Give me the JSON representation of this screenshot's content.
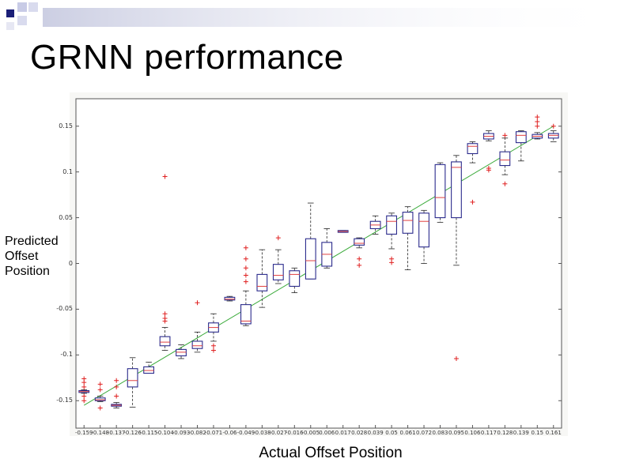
{
  "slide": {
    "title": "GRNN performance"
  },
  "colors": {
    "box": "#2b2b8c",
    "median": "#e04040",
    "outlier": "#e02020",
    "fit_line": "#3aaa3a",
    "whisker": "#222222"
  },
  "chart_data": {
    "type": "boxplot",
    "xlabel": "Actual Offset Position",
    "ylabel_lines": [
      "Predicted",
      "Offset",
      "Position"
    ],
    "ylim": [
      -0.18,
      0.18
    ],
    "yticks": [
      -0.15,
      -0.1,
      -0.05,
      0,
      0.05,
      0.1,
      0.15
    ],
    "ytick_labels": [
      "-0.15",
      "-0.1",
      "-0.05",
      "0",
      "0.05",
      "0.1",
      "0.15"
    ],
    "grid": false,
    "x_tick_labels": [
      "-0.159",
      "-0.148",
      "-0.137",
      "-0.126",
      "-0.115",
      "-0.104",
      "-0.093",
      "-0.082",
      "-0.071",
      "-0.06",
      "-0.049",
      "-0.038",
      "-0.027",
      "-0.016",
      "-0.005",
      "0.006",
      "0.017",
      "0.028",
      "0.039",
      "0.05",
      "0.061",
      "0.072",
      "0.083",
      "0.095",
      "0.106",
      "0.117",
      "0.128",
      "0.139",
      "0.15",
      "0.161"
    ],
    "fit_line": {
      "x": [
        -0.159,
        0.161
      ],
      "y": [
        -0.155,
        0.15
      ]
    },
    "boxes": [
      {
        "x": -0.159,
        "whisker_low": -0.142,
        "q1": -0.141,
        "median": -0.14,
        "q3": -0.139,
        "whisker_high": -0.138,
        "outliers": [
          -0.126,
          -0.13,
          -0.135,
          -0.145,
          -0.15
        ]
      },
      {
        "x": -0.148,
        "whisker_low": -0.151,
        "q1": -0.15,
        "median": -0.149,
        "q3": -0.147,
        "whisker_high": -0.145,
        "outliers": [
          -0.132,
          -0.138,
          -0.158
        ]
      },
      {
        "x": -0.137,
        "whisker_low": -0.158,
        "q1": -0.156,
        "median": -0.155,
        "q3": -0.154,
        "whisker_high": -0.152,
        "outliers": [
          -0.128,
          -0.135,
          -0.145
        ]
      },
      {
        "x": -0.126,
        "whisker_low": -0.157,
        "q1": -0.135,
        "median": -0.128,
        "q3": -0.115,
        "whisker_high": -0.103,
        "outliers": []
      },
      {
        "x": -0.115,
        "whisker_low": -0.12,
        "q1": -0.12,
        "median": -0.117,
        "q3": -0.113,
        "whisker_high": -0.108,
        "outliers": []
      },
      {
        "x": -0.104,
        "whisker_low": -0.095,
        "q1": -0.09,
        "median": -0.086,
        "q3": -0.08,
        "whisker_high": -0.07,
        "outliers": [
          0.095,
          -0.055,
          -0.06,
          -0.063
        ]
      },
      {
        "x": -0.093,
        "whisker_low": -0.104,
        "q1": -0.101,
        "median": -0.097,
        "q3": -0.094,
        "whisker_high": -0.089,
        "outliers": []
      },
      {
        "x": -0.082,
        "whisker_low": -0.097,
        "q1": -0.093,
        "median": -0.09,
        "q3": -0.085,
        "whisker_high": -0.075,
        "outliers": [
          -0.043
        ]
      },
      {
        "x": -0.071,
        "whisker_low": -0.085,
        "q1": -0.075,
        "median": -0.07,
        "q3": -0.065,
        "whisker_high": -0.055,
        "outliers": [
          -0.095,
          -0.09
        ]
      },
      {
        "x": -0.06,
        "whisker_low": -0.041,
        "q1": -0.04,
        "median": -0.039,
        "q3": -0.037,
        "whisker_high": -0.036,
        "outliers": []
      },
      {
        "x": -0.049,
        "whisker_low": -0.068,
        "q1": -0.066,
        "median": -0.063,
        "q3": -0.045,
        "whisker_high": -0.03,
        "outliers": [
          0.017,
          0.005,
          -0.005,
          -0.013,
          -0.02
        ]
      },
      {
        "x": -0.038,
        "whisker_low": -0.048,
        "q1": -0.03,
        "median": -0.025,
        "q3": -0.012,
        "whisker_high": 0.015,
        "outliers": []
      },
      {
        "x": -0.027,
        "whisker_low": -0.022,
        "q1": -0.018,
        "median": -0.013,
        "q3": -0.001,
        "whisker_high": 0.015,
        "outliers": [
          0.028
        ]
      },
      {
        "x": -0.016,
        "whisker_low": -0.032,
        "q1": -0.025,
        "median": -0.012,
        "q3": -0.008,
        "whisker_high": -0.005,
        "outliers": []
      },
      {
        "x": -0.005,
        "whisker_low": -0.017,
        "q1": -0.017,
        "median": 0.003,
        "q3": 0.027,
        "whisker_high": 0.066,
        "outliers": []
      },
      {
        "x": 0.006,
        "whisker_low": -0.005,
        "q1": -0.003,
        "median": 0.01,
        "q3": 0.023,
        "whisker_high": 0.038,
        "outliers": []
      },
      {
        "x": 0.017,
        "whisker_low": 0.034,
        "q1": 0.034,
        "median": 0.035,
        "q3": 0.036,
        "whisker_high": 0.036,
        "outliers": []
      },
      {
        "x": 0.028,
        "whisker_low": 0.017,
        "q1": 0.02,
        "median": 0.022,
        "q3": 0.027,
        "whisker_high": 0.028,
        "outliers": [
          0.005,
          -0.002
        ]
      },
      {
        "x": 0.039,
        "whisker_low": 0.032,
        "q1": 0.038,
        "median": 0.042,
        "q3": 0.046,
        "whisker_high": 0.052,
        "outliers": []
      },
      {
        "x": 0.05,
        "whisker_low": 0.016,
        "q1": 0.032,
        "median": 0.046,
        "q3": 0.052,
        "whisker_high": 0.055,
        "outliers": [
          0.005,
          0.001
        ]
      },
      {
        "x": 0.061,
        "whisker_low": -0.007,
        "q1": 0.033,
        "median": 0.047,
        "q3": 0.056,
        "whisker_high": 0.062,
        "outliers": []
      },
      {
        "x": 0.072,
        "whisker_low": 0.0,
        "q1": 0.018,
        "median": 0.046,
        "q3": 0.055,
        "whisker_high": 0.058,
        "outliers": []
      },
      {
        "x": 0.083,
        "whisker_low": 0.045,
        "q1": 0.05,
        "median": 0.072,
        "q3": 0.108,
        "whisker_high": 0.11,
        "outliers": []
      },
      {
        "x": 0.095,
        "whisker_low": -0.002,
        "q1": 0.05,
        "median": 0.105,
        "q3": 0.111,
        "whisker_high": 0.118,
        "outliers": [
          -0.104
        ]
      },
      {
        "x": 0.106,
        "whisker_low": 0.11,
        "q1": 0.12,
        "median": 0.128,
        "q3": 0.131,
        "whisker_high": 0.133,
        "outliers": [
          0.067
        ]
      },
      {
        "x": 0.117,
        "whisker_low": 0.134,
        "q1": 0.136,
        "median": 0.139,
        "q3": 0.142,
        "whisker_high": 0.145,
        "outliers": [
          0.104,
          0.102
        ]
      },
      {
        "x": 0.128,
        "whisker_low": 0.097,
        "q1": 0.107,
        "median": 0.113,
        "q3": 0.122,
        "whisker_high": 0.137,
        "outliers": [
          0.14,
          0.087
        ]
      },
      {
        "x": 0.139,
        "whisker_low": 0.112,
        "q1": 0.132,
        "median": 0.14,
        "q3": 0.144,
        "whisker_high": 0.145,
        "outliers": []
      },
      {
        "x": 0.15,
        "whisker_low": 0.136,
        "q1": 0.137,
        "median": 0.139,
        "q3": 0.141,
        "whisker_high": 0.143,
        "outliers": [
          0.16,
          0.155,
          0.15
        ]
      },
      {
        "x": 0.161,
        "whisker_low": 0.133,
        "q1": 0.137,
        "median": 0.14,
        "q3": 0.142,
        "whisker_high": 0.145,
        "outliers": [
          0.15
        ]
      }
    ]
  }
}
